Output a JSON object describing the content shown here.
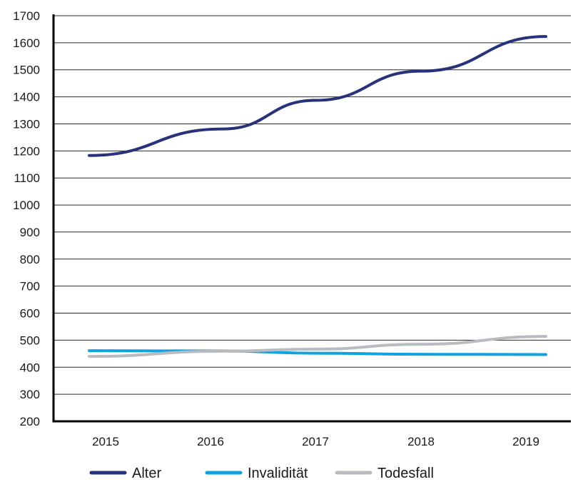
{
  "chart_data": {
    "type": "line",
    "title": "",
    "xlabel": "",
    "ylabel": "",
    "categories": [
      "2015",
      "2016",
      "2017",
      "2018",
      "2019"
    ],
    "ylim": [
      200,
      1700
    ],
    "yticks": [
      200,
      300,
      400,
      500,
      600,
      700,
      800,
      900,
      1000,
      1100,
      1200,
      1300,
      1400,
      1500,
      1600,
      1700
    ],
    "grid": true,
    "legend_position": "bottom",
    "series": [
      {
        "name": "Alter",
        "color": "#26337a",
        "values": [
          1183,
          1281,
          1387,
          1495,
          1623
        ]
      },
      {
        "name": "Invalidität",
        "color": "#12a3df",
        "values": [
          461,
          460,
          452,
          448,
          447
        ]
      },
      {
        "name": "Todesfall",
        "color": "#b8bbc0",
        "values": [
          440,
          459,
          467,
          485,
          514
        ]
      }
    ]
  }
}
